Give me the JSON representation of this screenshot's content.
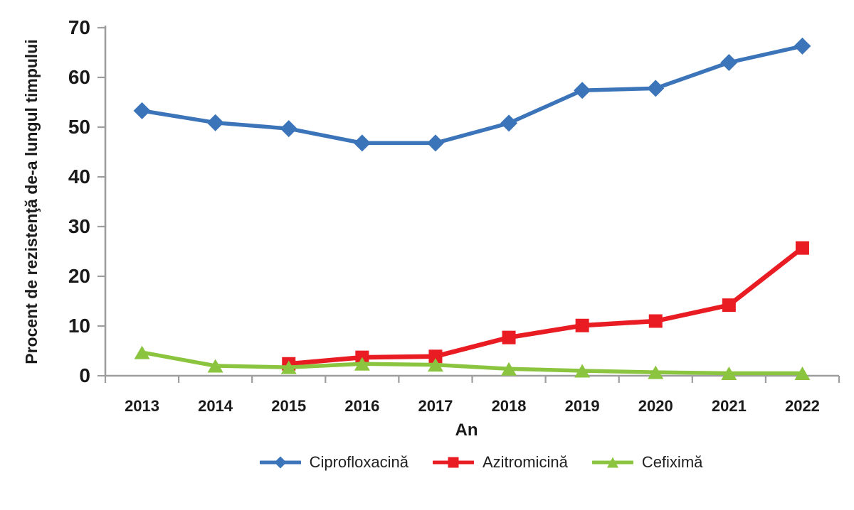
{
  "figure": {
    "background_color": "#ffffff",
    "text_color": "#1a1a1a",
    "axis_color": "#9d9d9d"
  },
  "chart_data": {
    "type": "line",
    "title": "",
    "xlabel": "An",
    "ylabel": "Procent de rezistenţă de-a lungul timpului",
    "categories": [
      "2013",
      "2014",
      "2015",
      "2016",
      "2017",
      "2018",
      "2019",
      "2020",
      "2021",
      "2022"
    ],
    "ylim": [
      0,
      70
    ],
    "yticks": [
      "0",
      "10",
      "20",
      "30",
      "40",
      "50",
      "60",
      "70"
    ],
    "ytick_values": [
      0,
      10,
      20,
      30,
      40,
      50,
      60,
      70
    ],
    "grid": false,
    "legend_position": "bottom-center",
    "series": [
      {
        "name": "Ciprofloxacină",
        "color": "#3b74b9",
        "marker": "diamond",
        "values": [
          53.3,
          50.9,
          49.7,
          46.8,
          46.8,
          50.8,
          57.4,
          57.8,
          63.0,
          66.3
        ]
      },
      {
        "name": "Azitromicină",
        "color": "#e81c22",
        "marker": "square",
        "values": [
          null,
          null,
          2.4,
          3.7,
          3.9,
          7.7,
          10.1,
          11.0,
          14.2,
          25.7
        ]
      },
      {
        "name": "Cefiximă",
        "color": "#8bc53f",
        "marker": "triangle",
        "values": [
          4.7,
          2.0,
          1.7,
          2.4,
          2.2,
          1.4,
          1.0,
          0.7,
          0.5,
          0.5
        ]
      }
    ]
  }
}
